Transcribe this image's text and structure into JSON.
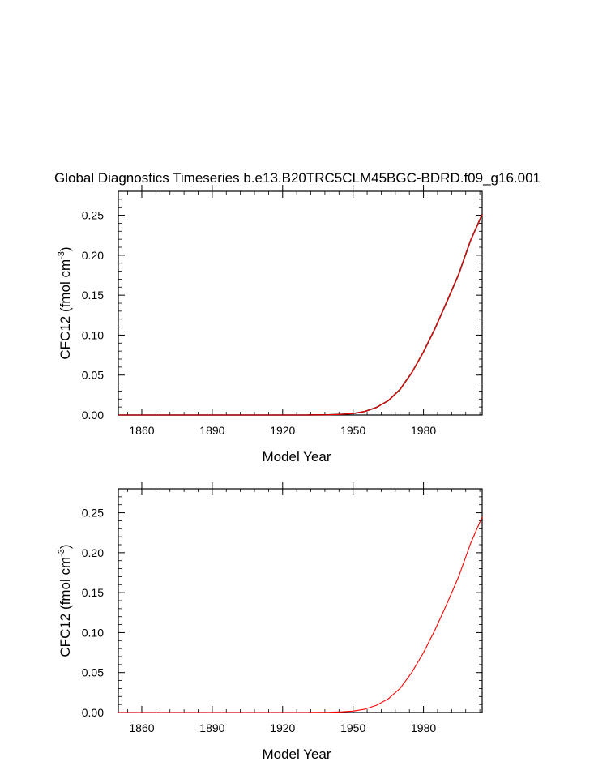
{
  "figure": {
    "title": "Global Diagnostics Timeseries b.e13.B20TRC5CLM45BGC-BDRD.f09_g16.001"
  },
  "chart_data": [
    {
      "type": "line",
      "xlabel": "Model Year",
      "ylabel": "CFC12 (fmol cm",
      "ylabel_superscript": "-3",
      "ylabel_close": ")",
      "xlim": [
        1850,
        2005
      ],
      "ylim": [
        0,
        0.28
      ],
      "xticks": [
        1860,
        1890,
        1920,
        1950,
        1980
      ],
      "yticks": [
        "0.00",
        "0.05",
        "0.10",
        "0.15",
        "0.20",
        "0.25"
      ],
      "series": [
        {
          "color": "#000000",
          "x": [
            1850,
            1900,
            1930,
            1940,
            1945,
            1950,
            1955,
            1960,
            1965,
            1970,
            1975,
            1980,
            1985,
            1990,
            1995,
            2000,
            2005
          ],
          "y": [
            0,
            0,
            0,
            0.0003,
            0.0008,
            0.0018,
            0.0045,
            0.0095,
            0.018,
            0.032,
            0.053,
            0.079,
            0.109,
            0.142,
            0.176,
            0.218,
            0.251
          ]
        },
        {
          "color": "#ff0000",
          "x": [
            1850,
            1900,
            1930,
            1940,
            1945,
            1950,
            1955,
            1960,
            1965,
            1970,
            1975,
            1980,
            1985,
            1990,
            1995,
            2000,
            2005
          ],
          "y": [
            0,
            0,
            0,
            0.0003,
            0.0008,
            0.0018,
            0.0045,
            0.0095,
            0.018,
            0.032,
            0.053,
            0.079,
            0.109,
            0.142,
            0.176,
            0.218,
            0.251
          ]
        }
      ]
    },
    {
      "type": "line",
      "xlabel": "Model Year",
      "ylabel": "CFC12 (fmol cm",
      "ylabel_superscript": "-3",
      "ylabel_close": ")",
      "xlim": [
        1850,
        2005
      ],
      "ylim": [
        0,
        0.28
      ],
      "xticks": [
        1860,
        1890,
        1920,
        1950,
        1980
      ],
      "yticks": [
        "0.00",
        "0.05",
        "0.10",
        "0.15",
        "0.20",
        "0.25"
      ],
      "series": [
        {
          "color": "#ff0000",
          "x": [
            1850,
            1900,
            1930,
            1940,
            1945,
            1950,
            1955,
            1960,
            1965,
            1970,
            1975,
            1980,
            1985,
            1990,
            1995,
            2000,
            2005
          ],
          "y": [
            0,
            0,
            0,
            0.0003,
            0.0008,
            0.0017,
            0.0042,
            0.009,
            0.017,
            0.03,
            0.05,
            0.075,
            0.104,
            0.136,
            0.17,
            0.211,
            0.245
          ]
        }
      ]
    }
  ]
}
